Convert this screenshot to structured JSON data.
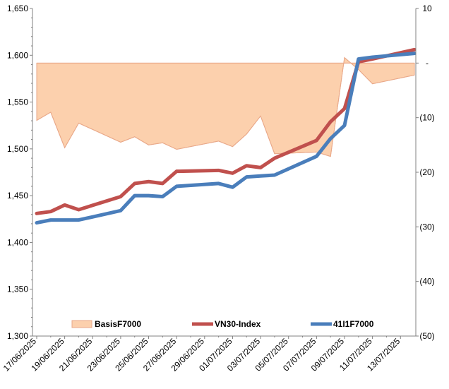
{
  "chart_data": {
    "type": "line",
    "dates": [
      "17/06/2025",
      "18/06/2025",
      "19/06/2025",
      "20/06/2025",
      "23/06/2025",
      "24/06/2025",
      "25/06/2025",
      "26/06/2025",
      "27/06/2025",
      "30/06/2025",
      "01/07/2025",
      "02/07/2025",
      "03/07/2025",
      "04/07/2025",
      "07/07/2025",
      "08/07/2025",
      "09/07/2025",
      "10/07/2025",
      "11/07/2025",
      "14/07/2025"
    ],
    "x_tick_labels": [
      "17/06/2025",
      "19/06/2025",
      "21/06/2025",
      "23/06/2025",
      "25/06/2025",
      "27/06/2025",
      "29/06/2025",
      "01/07/2025",
      "03/07/2025",
      "05/07/2025",
      "07/07/2025",
      "09/07/2025",
      "11/07/2025",
      "13/07/2025"
    ],
    "y_left": {
      "min": 1300,
      "max": 1650,
      "ticks": [
        "1,300",
        "1,350",
        "1,400",
        "1,450",
        "1,500",
        "1,550",
        "1,600",
        "1,650"
      ]
    },
    "y_right": {
      "min": -50,
      "max": 10,
      "ticks": [
        "10",
        "-",
        "(10)",
        "(20)",
        "(30)",
        "(40)",
        "(50)"
      ]
    },
    "series": [
      {
        "name": "BasisF7000",
        "kind": "area",
        "axis": "right",
        "color": "#fcd0ad",
        "edge_color": "#e9a98a",
        "values": [
          -10.5,
          -9,
          -15.5,
          -11,
          -14.5,
          -13.5,
          -15,
          -14.6,
          -15.8,
          -14.3,
          -15.3,
          -13,
          -9.7,
          -16.6,
          -16.3,
          -17.1,
          1.0,
          -1.2,
          -3.8,
          -2.2
        ]
      },
      {
        "name": "VN30-Index",
        "kind": "line",
        "axis": "left",
        "color": "#c0504d",
        "values": [
          1431,
          1433,
          1440,
          1435,
          1449,
          1463,
          1465,
          1463,
          1476,
          1477,
          1474,
          1482,
          1480,
          1490,
          1509,
          1529,
          1543,
          1593,
          1596,
          1606
        ]
      },
      {
        "name": "41I1F7000",
        "kind": "line",
        "axis": "left",
        "color": "#4a7ebb",
        "values": [
          1421,
          1424,
          1424,
          1424,
          1434,
          1450,
          1450,
          1449,
          1460,
          1463,
          1459,
          1470,
          1471,
          1472,
          1492,
          1511,
          1525,
          1596,
          1598,
          1602
        ]
      }
    ],
    "legend": {
      "position": "bottom-inside",
      "entries": [
        "BasisF7000",
        "VN30-Index",
        "41I1F7000"
      ]
    },
    "grid": false
  }
}
